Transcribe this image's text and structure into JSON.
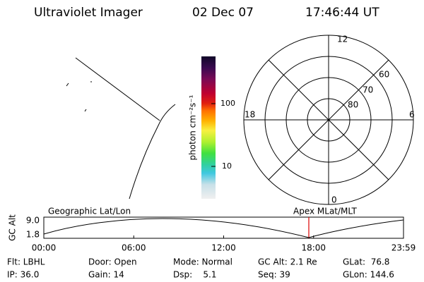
{
  "header": {
    "title": "Ultraviolet Imager",
    "date": "02 Dec 07",
    "time": "17:46:44 UT"
  },
  "colorbar": {
    "label": "photon cm⁻²s⁻¹",
    "ticks": [
      "100",
      "10"
    ]
  },
  "polar": {
    "mlt_labels": [
      "12",
      "6",
      "0",
      "18"
    ],
    "lat_labels": [
      "60",
      "70",
      "80"
    ]
  },
  "strip": {
    "left_title": "Geographic Lat/Lon",
    "right_title": "Apex MLat/MLT",
    "y_title": "GC Alt",
    "yticks": [
      "9.0",
      "1.8"
    ],
    "xticks": [
      "00:00",
      "06:00",
      "12:00",
      "18:00",
      "23:59"
    ]
  },
  "info": {
    "rows": [
      [
        "Flt: LBHL",
        "Door: Open",
        "Mode: Normal",
        "GC Alt: 2.1 Re",
        "GLat:  76.8"
      ],
      [
        "IP: 36.0",
        "Gain: 14",
        "Dsp:    5.1",
        "Seq: 39",
        "GLon: 144.6"
      ]
    ]
  }
}
